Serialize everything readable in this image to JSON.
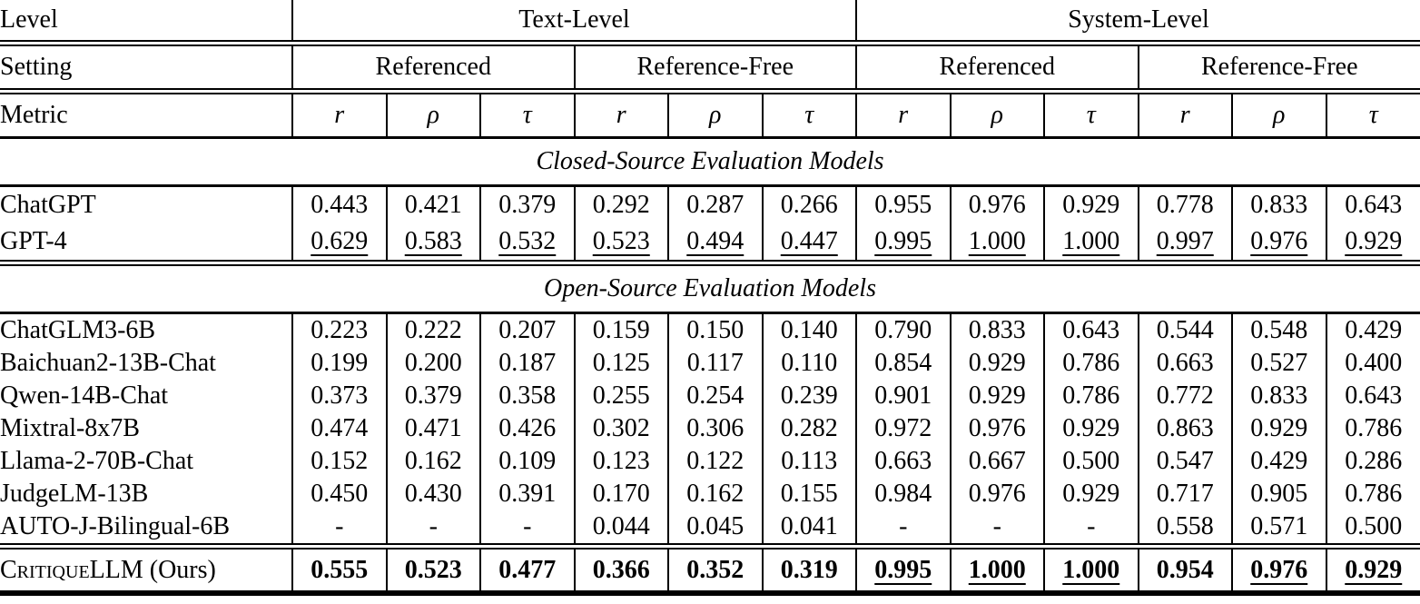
{
  "page": {
    "background_color": "#ffffff",
    "text_color": "#000000"
  },
  "table": {
    "header": {
      "level_label": "Level",
      "setting_label": "Setting",
      "metric_label": "Metric",
      "levels": [
        "Text-Level",
        "System-Level"
      ],
      "settings": [
        "Referenced",
        "Reference-Free",
        "Referenced",
        "Reference-Free"
      ],
      "metrics": [
        "r",
        "ρ",
        "τ",
        "r",
        "ρ",
        "τ",
        "r",
        "ρ",
        "τ",
        "r",
        "ρ",
        "τ"
      ]
    },
    "sections": [
      {
        "title": "Closed-Source Evaluation Models",
        "rows": [
          {
            "model": "ChatGPT",
            "values": [
              "0.443",
              "0.421",
              "0.379",
              "0.292",
              "0.287",
              "0.266",
              "0.955",
              "0.976",
              "0.929",
              "0.778",
              "0.833",
              "0.643"
            ],
            "underlined_indices": [],
            "bold": false
          },
          {
            "model": "GPT-4",
            "values": [
              "0.629",
              "0.583",
              "0.532",
              "0.523",
              "0.494",
              "0.447",
              "0.995",
              "1.000",
              "1.000",
              "0.997",
              "0.976",
              "0.929"
            ],
            "underlined_indices": [
              0,
              1,
              2,
              3,
              4,
              5,
              6,
              7,
              8,
              9,
              10,
              11
            ],
            "bold": false
          }
        ]
      },
      {
        "title": "Open-Source Evaluation Models",
        "rows": [
          {
            "model": "ChatGLM3-6B",
            "values": [
              "0.223",
              "0.222",
              "0.207",
              "0.159",
              "0.150",
              "0.140",
              "0.790",
              "0.833",
              "0.643",
              "0.544",
              "0.548",
              "0.429"
            ],
            "underlined_indices": [],
            "bold": false
          },
          {
            "model": "Baichuan2-13B-Chat",
            "values": [
              "0.199",
              "0.200",
              "0.187",
              "0.125",
              "0.117",
              "0.110",
              "0.854",
              "0.929",
              "0.786",
              "0.663",
              "0.527",
              "0.400"
            ],
            "underlined_indices": [],
            "bold": false
          },
          {
            "model": "Qwen-14B-Chat",
            "values": [
              "0.373",
              "0.379",
              "0.358",
              "0.255",
              "0.254",
              "0.239",
              "0.901",
              "0.929",
              "0.786",
              "0.772",
              "0.833",
              "0.643"
            ],
            "underlined_indices": [],
            "bold": false
          },
          {
            "model": "Mixtral-8x7B",
            "values": [
              "0.474",
              "0.471",
              "0.426",
              "0.302",
              "0.306",
              "0.282",
              "0.972",
              "0.976",
              "0.929",
              "0.863",
              "0.929",
              "0.786"
            ],
            "underlined_indices": [],
            "bold": false
          },
          {
            "model": "Llama-2-70B-Chat",
            "values": [
              "0.152",
              "0.162",
              "0.109",
              "0.123",
              "0.122",
              "0.113",
              "0.663",
              "0.667",
              "0.500",
              "0.547",
              "0.429",
              "0.286"
            ],
            "underlined_indices": [],
            "bold": false
          },
          {
            "model": "JudgeLM-13B",
            "values": [
              "0.450",
              "0.430",
              "0.391",
              "0.170",
              "0.162",
              "0.155",
              "0.984",
              "0.976",
              "0.929",
              "0.717",
              "0.905",
              "0.786"
            ],
            "underlined_indices": [],
            "bold": false
          },
          {
            "model": "AUTO-J-Bilingual-6B",
            "values": [
              "-",
              "-",
              "-",
              "0.044",
              "0.045",
              "0.041",
              "-",
              "-",
              "-",
              "0.558",
              "0.571",
              "0.500"
            ],
            "underlined_indices": [],
            "bold": false
          }
        ]
      }
    ],
    "footer": {
      "model_smallcaps": "Critique",
      "model_rest": "LLM (Ours)",
      "values": [
        "0.555",
        "0.523",
        "0.477",
        "0.366",
        "0.352",
        "0.319",
        "0.995",
        "1.000",
        "1.000",
        "0.954",
        "0.976",
        "0.929"
      ],
      "underlined_indices": [
        6,
        7,
        8,
        10,
        11
      ],
      "bold": true
    }
  }
}
